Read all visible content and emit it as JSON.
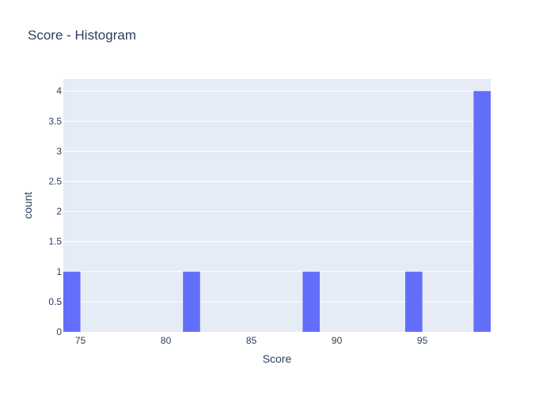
{
  "chart_data": {
    "type": "bar",
    "title": "Score - Histogram",
    "xlabel": "Score",
    "ylabel": "count",
    "bin_width": 1,
    "bins": [
      {
        "start": 74,
        "end": 75,
        "count": 1
      },
      {
        "start": 81,
        "end": 82,
        "count": 1
      },
      {
        "start": 88,
        "end": 89,
        "count": 1
      },
      {
        "start": 94,
        "end": 95,
        "count": 1
      },
      {
        "start": 98,
        "end": 99,
        "count": 4
      }
    ],
    "xlim": [
      74,
      99
    ],
    "ylim": [
      0,
      4.2
    ],
    "x_ticks": [
      75,
      80,
      85,
      90,
      95
    ],
    "x_tick_labels": [
      "75",
      "80",
      "85",
      "90",
      "95"
    ],
    "y_ticks": [
      0,
      0.5,
      1,
      1.5,
      2,
      2.5,
      3,
      3.5,
      4
    ],
    "y_tick_labels": [
      "0",
      "0.5",
      "1",
      "1.5",
      "2",
      "2.5",
      "3",
      "3.5",
      "4"
    ],
    "grid": true,
    "colors": {
      "bar": "#636efa",
      "plot_background": "#e5ecf6",
      "grid": "#ffffff",
      "text": "#2a3f5f"
    }
  }
}
